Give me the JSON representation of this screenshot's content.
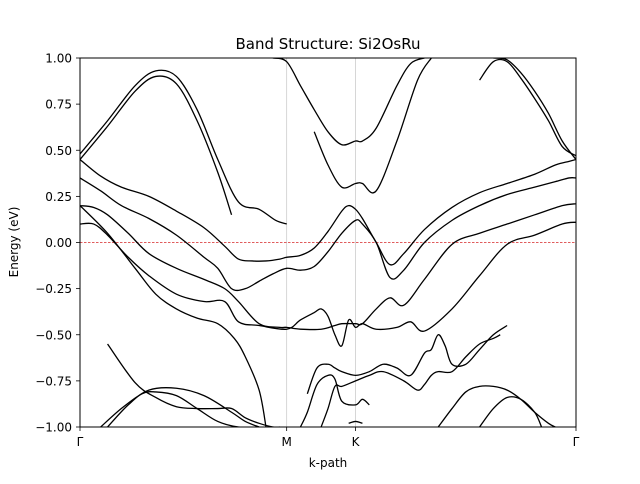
{
  "chart_data": {
    "type": "line",
    "title": "Band Structure: Si2OsRu",
    "xlabel": "k-path",
    "ylabel": "Energy (eV)",
    "xlim": [
      0,
      3.6
    ],
    "ylim": [
      -1.0,
      1.0
    ],
    "x_ticks": [
      {
        "x": 0.0,
        "label": "Γ"
      },
      {
        "x": 1.5,
        "label": "M"
      },
      {
        "x": 2.0,
        "label": "K"
      },
      {
        "x": 3.6,
        "label": "Γ"
      }
    ],
    "y_ticks": [
      {
        "y": 1.0,
        "label": "1.00"
      },
      {
        "y": 0.75,
        "label": "0.75"
      },
      {
        "y": 0.5,
        "label": "0.50"
      },
      {
        "y": 0.25,
        "label": "0.25"
      },
      {
        "y": 0.0,
        "label": "0.00"
      },
      {
        "y": -0.25,
        "label": "−0.25"
      },
      {
        "y": -0.5,
        "label": "−0.50"
      },
      {
        "y": -0.75,
        "label": "−0.75"
      },
      {
        "y": -1.0,
        "label": "−1.00"
      }
    ],
    "vertical_lines": [
      1.5,
      2.0
    ],
    "fermi_level": 0.0,
    "grid": false,
    "line_color": "#000000",
    "fermi_color": "#d62728",
    "vline_color": "#cccccc",
    "series": [
      {
        "x": [
          0.0,
          0.2,
          0.4,
          0.55,
          0.7,
          0.85,
          1.0,
          1.15,
          1.3,
          1.42,
          1.5
        ],
        "y": [
          0.48,
          0.66,
          0.85,
          0.93,
          0.9,
          0.72,
          0.45,
          0.22,
          0.18,
          0.12,
          0.1
        ]
      },
      {
        "x": [
          0.0,
          0.2,
          0.4,
          0.55,
          0.7,
          0.85,
          1.0,
          1.1
        ],
        "y": [
          0.45,
          0.63,
          0.82,
          0.9,
          0.86,
          0.66,
          0.38,
          0.15
        ]
      },
      {
        "x": [
          1.4,
          1.5,
          1.6,
          1.7,
          1.8,
          1.9,
          2.0,
          2.05,
          2.15,
          2.3,
          2.4,
          2.5
        ],
        "y": [
          1.0,
          0.98,
          0.85,
          0.72,
          0.6,
          0.53,
          0.55,
          0.55,
          0.62,
          0.85,
          0.97,
          1.0
        ]
      },
      {
        "x": [
          1.7,
          1.8,
          1.9,
          2.0,
          2.05,
          2.15,
          2.3,
          2.45,
          2.55
        ],
        "y": [
          0.6,
          0.42,
          0.3,
          0.32,
          0.32,
          0.28,
          0.55,
          0.88,
          1.0
        ]
      },
      {
        "x": [
          3.0,
          3.1,
          3.2,
          3.3,
          3.4,
          3.5,
          3.6
        ],
        "y": [
          1.0,
          0.99,
          0.92,
          0.82,
          0.7,
          0.55,
          0.45
        ]
      },
      {
        "x": [
          2.9,
          3.0,
          3.1,
          3.2,
          3.3,
          3.4,
          3.5,
          3.6
        ],
        "y": [
          0.88,
          0.98,
          0.98,
          0.89,
          0.78,
          0.66,
          0.52,
          0.47
        ]
      },
      {
        "x": [
          0.0,
          0.15,
          0.3,
          0.5,
          0.7,
          0.9,
          1.05,
          1.15,
          1.25,
          1.35,
          1.45,
          1.5,
          1.6,
          1.7,
          1.8,
          1.9,
          1.95,
          2.0,
          2.05,
          2.15,
          2.25,
          2.35,
          2.5,
          2.7,
          2.9,
          3.1,
          3.3,
          3.45,
          3.55,
          3.6
        ],
        "y": [
          0.45,
          0.36,
          0.3,
          0.25,
          0.17,
          0.08,
          -0.02,
          -0.09,
          -0.1,
          -0.1,
          -0.09,
          -0.08,
          -0.07,
          -0.03,
          0.06,
          0.17,
          0.2,
          0.18,
          0.13,
          0.0,
          -0.12,
          -0.06,
          0.07,
          0.19,
          0.27,
          0.32,
          0.37,
          0.42,
          0.44,
          0.45
        ]
      },
      {
        "x": [
          0.0,
          0.15,
          0.3,
          0.5,
          0.7,
          0.9,
          1.0,
          1.1,
          1.2,
          1.3,
          1.4,
          1.5,
          1.6,
          1.7,
          1.8,
          1.9,
          2.0,
          2.05,
          2.15,
          2.25,
          2.35,
          2.5,
          2.7,
          2.9,
          3.1,
          3.3,
          3.45,
          3.55,
          3.6
        ],
        "y": [
          0.35,
          0.28,
          0.2,
          0.13,
          0.04,
          -0.08,
          -0.14,
          -0.25,
          -0.25,
          -0.21,
          -0.17,
          -0.14,
          -0.15,
          -0.13,
          -0.05,
          0.05,
          0.12,
          0.1,
          0.0,
          -0.19,
          -0.15,
          0.0,
          0.12,
          0.2,
          0.26,
          0.3,
          0.33,
          0.35,
          0.35
        ]
      },
      {
        "x": [
          0.0,
          0.1,
          0.2,
          0.35,
          0.5,
          0.7,
          0.9,
          1.05,
          1.15,
          1.3,
          1.45,
          1.5,
          1.6,
          1.75,
          1.85,
          1.9,
          2.0,
          2.05,
          2.15,
          2.25,
          2.35,
          2.5,
          2.7,
          2.9,
          3.1,
          3.3,
          3.5,
          3.6
        ],
        "y": [
          0.2,
          0.19,
          0.15,
          0.05,
          -0.06,
          -0.14,
          -0.2,
          -0.25,
          -0.32,
          -0.44,
          -0.46,
          -0.46,
          -0.47,
          -0.47,
          -0.45,
          -0.44,
          -0.44,
          -0.44,
          -0.36,
          -0.3,
          -0.34,
          -0.2,
          -0.01,
          0.05,
          0.1,
          0.15,
          0.2,
          0.21
        ]
      },
      {
        "x": [
          0.0,
          0.1,
          0.2,
          0.35,
          0.5,
          0.7,
          0.9,
          1.05,
          1.15,
          1.3,
          1.5,
          1.6,
          1.7,
          1.75,
          1.8,
          1.85,
          1.9,
          1.95,
          2.0,
          2.05,
          2.15,
          2.3,
          2.4,
          2.5,
          2.7,
          2.9,
          3.1,
          3.3,
          3.5,
          3.6
        ],
        "y": [
          0.1,
          0.1,
          0.04,
          -0.08,
          -0.18,
          -0.28,
          -0.32,
          -0.32,
          -0.43,
          -0.45,
          -0.47,
          -0.42,
          -0.38,
          -0.36,
          -0.4,
          -0.5,
          -0.56,
          -0.42,
          -0.46,
          -0.44,
          -0.47,
          -0.46,
          -0.43,
          -0.48,
          -0.36,
          -0.18,
          -0.01,
          0.04,
          0.1,
          0.11
        ]
      },
      {
        "x": [
          0.0,
          0.2,
          0.4,
          0.55,
          0.7,
          0.85,
          1.0,
          1.12,
          1.2,
          1.3,
          1.35
        ],
        "y": [
          0.2,
          0.05,
          -0.14,
          -0.28,
          -0.36,
          -0.41,
          -0.44,
          -0.52,
          -0.62,
          -0.8,
          -1.0
        ]
      },
      {
        "x": [
          0.2,
          0.4,
          0.55,
          0.7,
          0.85,
          1.0,
          1.1,
          1.2,
          1.3,
          1.4,
          1.45
        ],
        "y": [
          -0.55,
          -0.76,
          -0.84,
          -0.89,
          -0.9,
          -0.9,
          -0.9,
          -0.95,
          -0.98,
          -1.0,
          -1.0
        ]
      },
      {
        "x": [
          0.2,
          0.35,
          0.5,
          0.7,
          0.9,
          1.1,
          1.2,
          1.3
        ],
        "y": [
          -1.0,
          -0.88,
          -0.8,
          -0.79,
          -0.83,
          -0.92,
          -0.97,
          -1.0
        ]
      },
      {
        "x": [
          0.15,
          0.3,
          0.45,
          0.55,
          0.7,
          0.85,
          1.0,
          1.15,
          1.3
        ],
        "y": [
          -1.0,
          -0.9,
          -0.82,
          -0.81,
          -0.83,
          -0.9,
          -0.97,
          -1.0,
          -1.0
        ]
      },
      {
        "x": [
          1.65,
          1.72,
          1.8,
          1.85,
          1.9,
          2.0,
          2.1,
          2.2,
          2.3,
          2.4,
          2.5,
          2.55,
          2.6,
          2.65,
          2.7,
          2.8,
          2.9,
          3.0,
          3.1
        ],
        "y": [
          -0.82,
          -0.68,
          -0.66,
          -0.68,
          -0.7,
          -0.72,
          -0.7,
          -0.66,
          -0.68,
          -0.72,
          -0.6,
          -0.58,
          -0.5,
          -0.56,
          -0.66,
          -0.66,
          -0.58,
          -0.5,
          -0.45
        ]
      },
      {
        "x": [
          1.75,
          1.8,
          1.85,
          1.9,
          2.0,
          2.1,
          2.2,
          2.35,
          2.45,
          2.5,
          2.55,
          2.6,
          2.7,
          2.8,
          2.9,
          3.0,
          3.05
        ],
        "y": [
          -1.0,
          -0.9,
          -0.78,
          -0.78,
          -0.75,
          -0.72,
          -0.7,
          -0.75,
          -0.8,
          -0.77,
          -0.72,
          -0.7,
          -0.7,
          -0.62,
          -0.55,
          -0.52,
          -0.5
        ]
      },
      {
        "x": [
          1.6,
          1.65,
          1.72,
          1.8,
          1.85,
          1.9,
          2.0,
          2.05,
          2.1
        ],
        "y": [
          -1.0,
          -0.92,
          -0.77,
          -0.72,
          -0.74,
          -0.86,
          -0.88,
          -0.85,
          -0.88
        ]
      },
      {
        "x": [
          1.95,
          2.0,
          2.05
        ],
        "y": [
          -0.98,
          -0.97,
          -0.98
        ]
      },
      {
        "x": [
          2.6,
          2.7,
          2.8,
          2.9,
          3.0,
          3.1,
          3.2,
          3.3,
          3.4,
          3.45
        ],
        "y": [
          -1.0,
          -0.9,
          -0.81,
          -0.78,
          -0.78,
          -0.8,
          -0.85,
          -0.92,
          -0.98,
          -1.0
        ]
      },
      {
        "x": [
          2.9,
          3.0,
          3.1,
          3.2,
          3.3,
          3.35
        ],
        "y": [
          -1.0,
          -0.9,
          -0.84,
          -0.85,
          -0.92,
          -1.0
        ]
      }
    ]
  }
}
